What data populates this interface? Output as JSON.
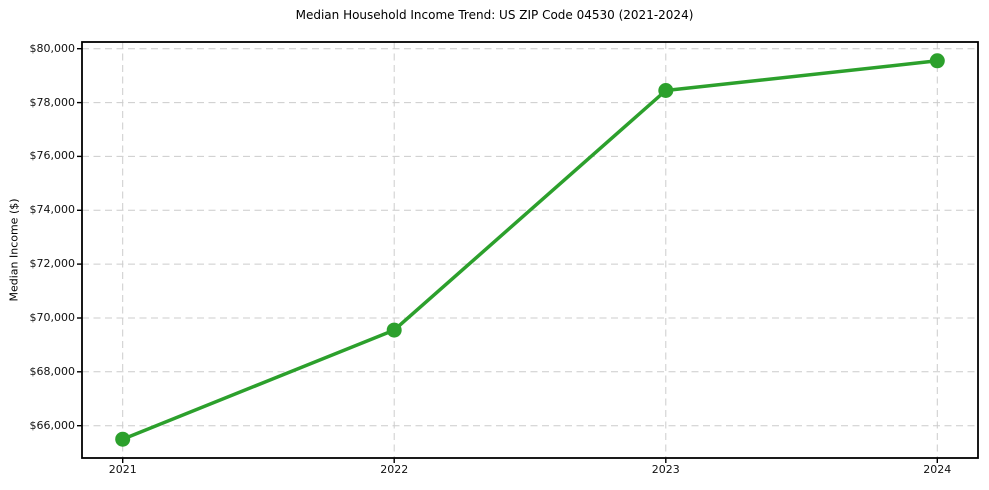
{
  "page": {
    "title": "Median Household Income Trend: US ZIP Code 04530 (2021-2024)"
  },
  "chart_data": {
    "type": "line",
    "title": "Median Household Income Trend: US ZIP Code 04530 (2021-2024)",
    "xlabel": "",
    "ylabel": "Median Income ($)",
    "x": [
      2021,
      2022,
      2023,
      2024
    ],
    "series": [
      {
        "name": "Median Household Income",
        "values": [
          65500,
          69550,
          78450,
          79550
        ]
      }
    ],
    "xlim": [
      2020.85,
      2024.15
    ],
    "ylim": [
      64800,
      80250
    ],
    "yticks": [
      {
        "value": 66000,
        "label": "$66,000"
      },
      {
        "value": 68000,
        "label": "$68,000"
      },
      {
        "value": 70000,
        "label": "$70,000"
      },
      {
        "value": 72000,
        "label": "$72,000"
      },
      {
        "value": 74000,
        "label": "$74,000"
      },
      {
        "value": 76000,
        "label": "$76,000"
      },
      {
        "value": 78000,
        "label": "$78,000"
      },
      {
        "value": 80000,
        "label": "$80,000"
      }
    ],
    "xticks": [
      {
        "value": 2021,
        "label": "2021"
      },
      {
        "value": 2022,
        "label": "2022"
      },
      {
        "value": 2023,
        "label": "2023"
      },
      {
        "value": 2024,
        "label": "2024"
      }
    ],
    "grid": "both-dashed",
    "legend": "none",
    "line_color": "#2ca02c",
    "marker": "circle",
    "grid_color": "#cccccc",
    "frame_color": "#000000"
  }
}
